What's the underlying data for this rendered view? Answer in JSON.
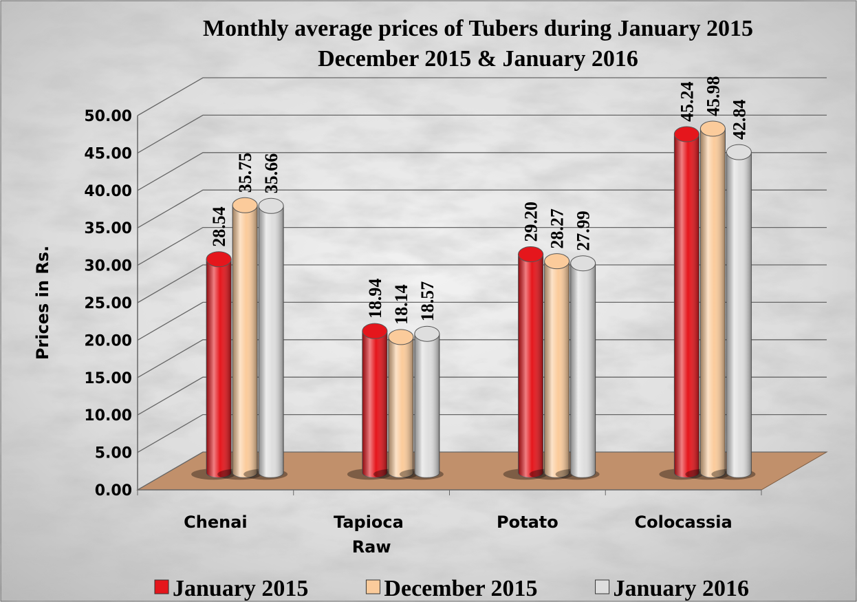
{
  "chart_data": {
    "type": "bar",
    "title": [
      "Monthly average prices of Tubers during  January 2015",
      "December 2015 & January 2016"
    ],
    "y_label": "Prices in Rs.",
    "categories": [
      "Chenai",
      "Tapioca Raw",
      "Potato",
      "Colocassia"
    ],
    "series": [
      {
        "name": "January 2015",
        "color": "#e5161c",
        "values": [
          28.54,
          18.94,
          29.2,
          45.24
        ],
        "value_labels": [
          "28.54",
          "18.94",
          "29.20",
          "45.24"
        ]
      },
      {
        "name": "December 2015",
        "color": "#fbcb9b",
        "values": [
          35.75,
          18.14,
          28.27,
          45.98
        ],
        "value_labels": [
          "35.75",
          "18.14",
          "28.27",
          "45.98"
        ]
      },
      {
        "name": "January 2016",
        "color": "#dedede",
        "values": [
          35.66,
          18.57,
          27.99,
          42.84
        ],
        "value_labels": [
          "35.66",
          "18.57",
          "27.99",
          "42.84"
        ]
      }
    ],
    "ylim": [
      0,
      50
    ],
    "yticks": [
      {
        "value": 0,
        "label": "0.00"
      },
      {
        "value": 5,
        "label": "5.00"
      },
      {
        "value": 10,
        "label": "10.00"
      },
      {
        "value": 15,
        "label": "15.00"
      },
      {
        "value": 20,
        "label": "20.00"
      },
      {
        "value": 25,
        "label": "25.00"
      },
      {
        "value": 30,
        "label": "30.00"
      },
      {
        "value": 35,
        "label": "35.00"
      },
      {
        "value": 40,
        "label": "40.00"
      },
      {
        "value": 45,
        "label": "45.00"
      },
      {
        "value": 50,
        "label": "50.00"
      }
    ],
    "grid": true,
    "legend": "bottom"
  }
}
